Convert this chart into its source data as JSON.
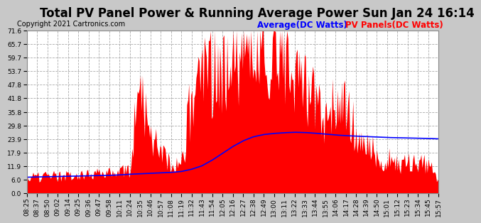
{
  "title": "Total PV Panel Power & Running Average Power Sun Jan 24 16:14",
  "copyright": "Copyright 2021 Cartronics.com",
  "legend_avg": "Average(DC Watts)",
  "legend_pv": "PV Panels(DC Watts)",
  "bg_color": "#c8c8c8",
  "plot_bg_color": "#ffffff",
  "grid_color": "#aaaaaa",
  "bar_color": "#ff0000",
  "avg_color": "#0000ff",
  "ylim": [
    0.0,
    71.6
  ],
  "yticks": [
    0.0,
    6.0,
    11.9,
    17.9,
    23.9,
    29.8,
    35.8,
    41.8,
    47.8,
    53.7,
    59.7,
    65.7,
    71.6
  ],
  "title_fontsize": 12,
  "copyright_fontsize": 7,
  "legend_fontsize": 8.5,
  "tick_fontsize": 6.5,
  "x_times": [
    "08:25",
    "08:37",
    "08:50",
    "09:02",
    "09:14",
    "09:25",
    "09:36",
    "09:47",
    "09:58",
    "10:11",
    "10:24",
    "10:35",
    "10:46",
    "10:57",
    "11:08",
    "11:19",
    "11:32",
    "11:43",
    "11:54",
    "12:05",
    "12:16",
    "12:27",
    "12:38",
    "12:49",
    "13:00",
    "13:11",
    "13:22",
    "13:33",
    "13:44",
    "13:55",
    "14:06",
    "14:17",
    "14:28",
    "14:39",
    "14:50",
    "15:01",
    "15:12",
    "15:23",
    "15:34",
    "15:45",
    "15:57"
  ],
  "avg_values": [
    7.0,
    7.1,
    7.2,
    7.3,
    7.4,
    7.5,
    7.6,
    7.7,
    7.8,
    8.0,
    8.3,
    8.5,
    8.7,
    8.9,
    9.1,
    9.5,
    10.5,
    12.0,
    14.5,
    17.5,
    20.5,
    23.0,
    24.8,
    25.8,
    26.3,
    26.6,
    26.8,
    26.7,
    26.4,
    26.0,
    25.6,
    25.3,
    25.1,
    24.9,
    24.7,
    24.5,
    24.4,
    24.3,
    24.2,
    24.1,
    23.9
  ]
}
